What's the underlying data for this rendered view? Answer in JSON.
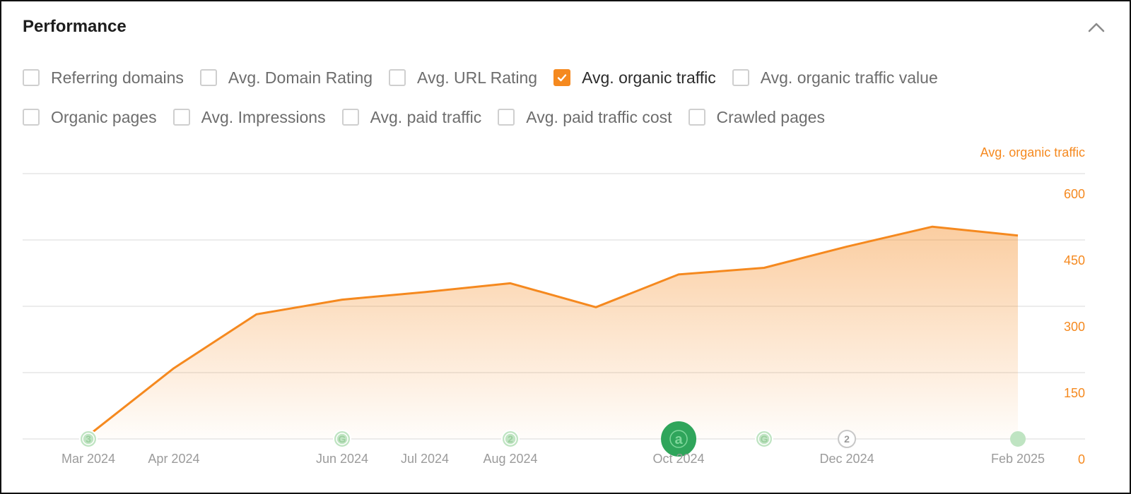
{
  "card": {
    "title": "Performance"
  },
  "metrics": {
    "row1": [
      {
        "label": "Referring domains",
        "checked": false
      },
      {
        "label": "Avg. Domain Rating",
        "checked": false
      },
      {
        "label": "Avg. URL Rating",
        "checked": false
      },
      {
        "label": "Avg. organic traffic",
        "checked": true
      },
      {
        "label": "Avg. organic traffic value",
        "checked": false
      }
    ],
    "row2": [
      {
        "label": "Organic pages",
        "checked": false
      },
      {
        "label": "Avg. Impressions",
        "checked": false
      },
      {
        "label": "Avg. paid traffic",
        "checked": false
      },
      {
        "label": "Avg. paid traffic cost",
        "checked": false
      },
      {
        "label": "Crawled pages",
        "checked": false
      }
    ]
  },
  "colors": {
    "accent": "#f5891f",
    "grid": "#e6e6e6",
    "marker_light": "#bfe4c2",
    "marker_dark": "#2fa55b",
    "marker_white": "#ffffff"
  },
  "chart_data": {
    "type": "area",
    "y_axis_label": "Avg. organic traffic",
    "y_axis_side": "right",
    "ylim": [
      0,
      600
    ],
    "yticks": [
      0,
      150,
      300,
      450,
      600
    ],
    "grid": true,
    "series": [
      {
        "name": "Avg. organic traffic",
        "points": [
          {
            "x": "2024-03-01",
            "y": 8
          },
          {
            "x": "2024-04-01",
            "y": 160
          },
          {
            "x": "2024-05-01",
            "y": 282
          },
          {
            "x": "2024-06-01",
            "y": 315
          },
          {
            "x": "2024-07-01",
            "y": 332
          },
          {
            "x": "2024-08-01",
            "y": 352
          },
          {
            "x": "2024-09-01",
            "y": 298
          },
          {
            "x": "2024-10-01",
            "y": 372
          },
          {
            "x": "2024-11-01",
            "y": 387
          },
          {
            "x": "2024-12-01",
            "y": 435
          },
          {
            "x": "2025-01-01",
            "y": 480
          },
          {
            "x": "2025-02-01",
            "y": 460
          }
        ]
      }
    ],
    "x_ticks": [
      {
        "x": "2024-03-01",
        "label": "Mar 2024"
      },
      {
        "x": "2024-04-01",
        "label": "Apr 2024"
      },
      {
        "x": "2024-06-01",
        "label": "Jun 2024"
      },
      {
        "x": "2024-07-01",
        "label": "Jul 2024"
      },
      {
        "x": "2024-08-01",
        "label": "Aug 2024"
      },
      {
        "x": "2024-10-01",
        "label": "Oct 2024"
      },
      {
        "x": "2024-12-01",
        "label": "Dec 2024"
      },
      {
        "x": "2025-02-01",
        "label": "Feb 2025"
      }
    ],
    "annotations": [
      {
        "x": "2024-03-01",
        "label": "3",
        "style": "light"
      },
      {
        "x": "2024-06-01",
        "label": "G",
        "style": "light"
      },
      {
        "x": "2024-08-01",
        "label": "2",
        "style": "light"
      },
      {
        "x": "2024-10-01",
        "label": "a",
        "style": "dark"
      },
      {
        "x": "2024-11-01",
        "label": "G",
        "style": "light"
      },
      {
        "x": "2024-12-01",
        "label": "2",
        "style": "white"
      },
      {
        "x": "2025-02-01",
        "label": "",
        "style": "plain"
      }
    ]
  }
}
